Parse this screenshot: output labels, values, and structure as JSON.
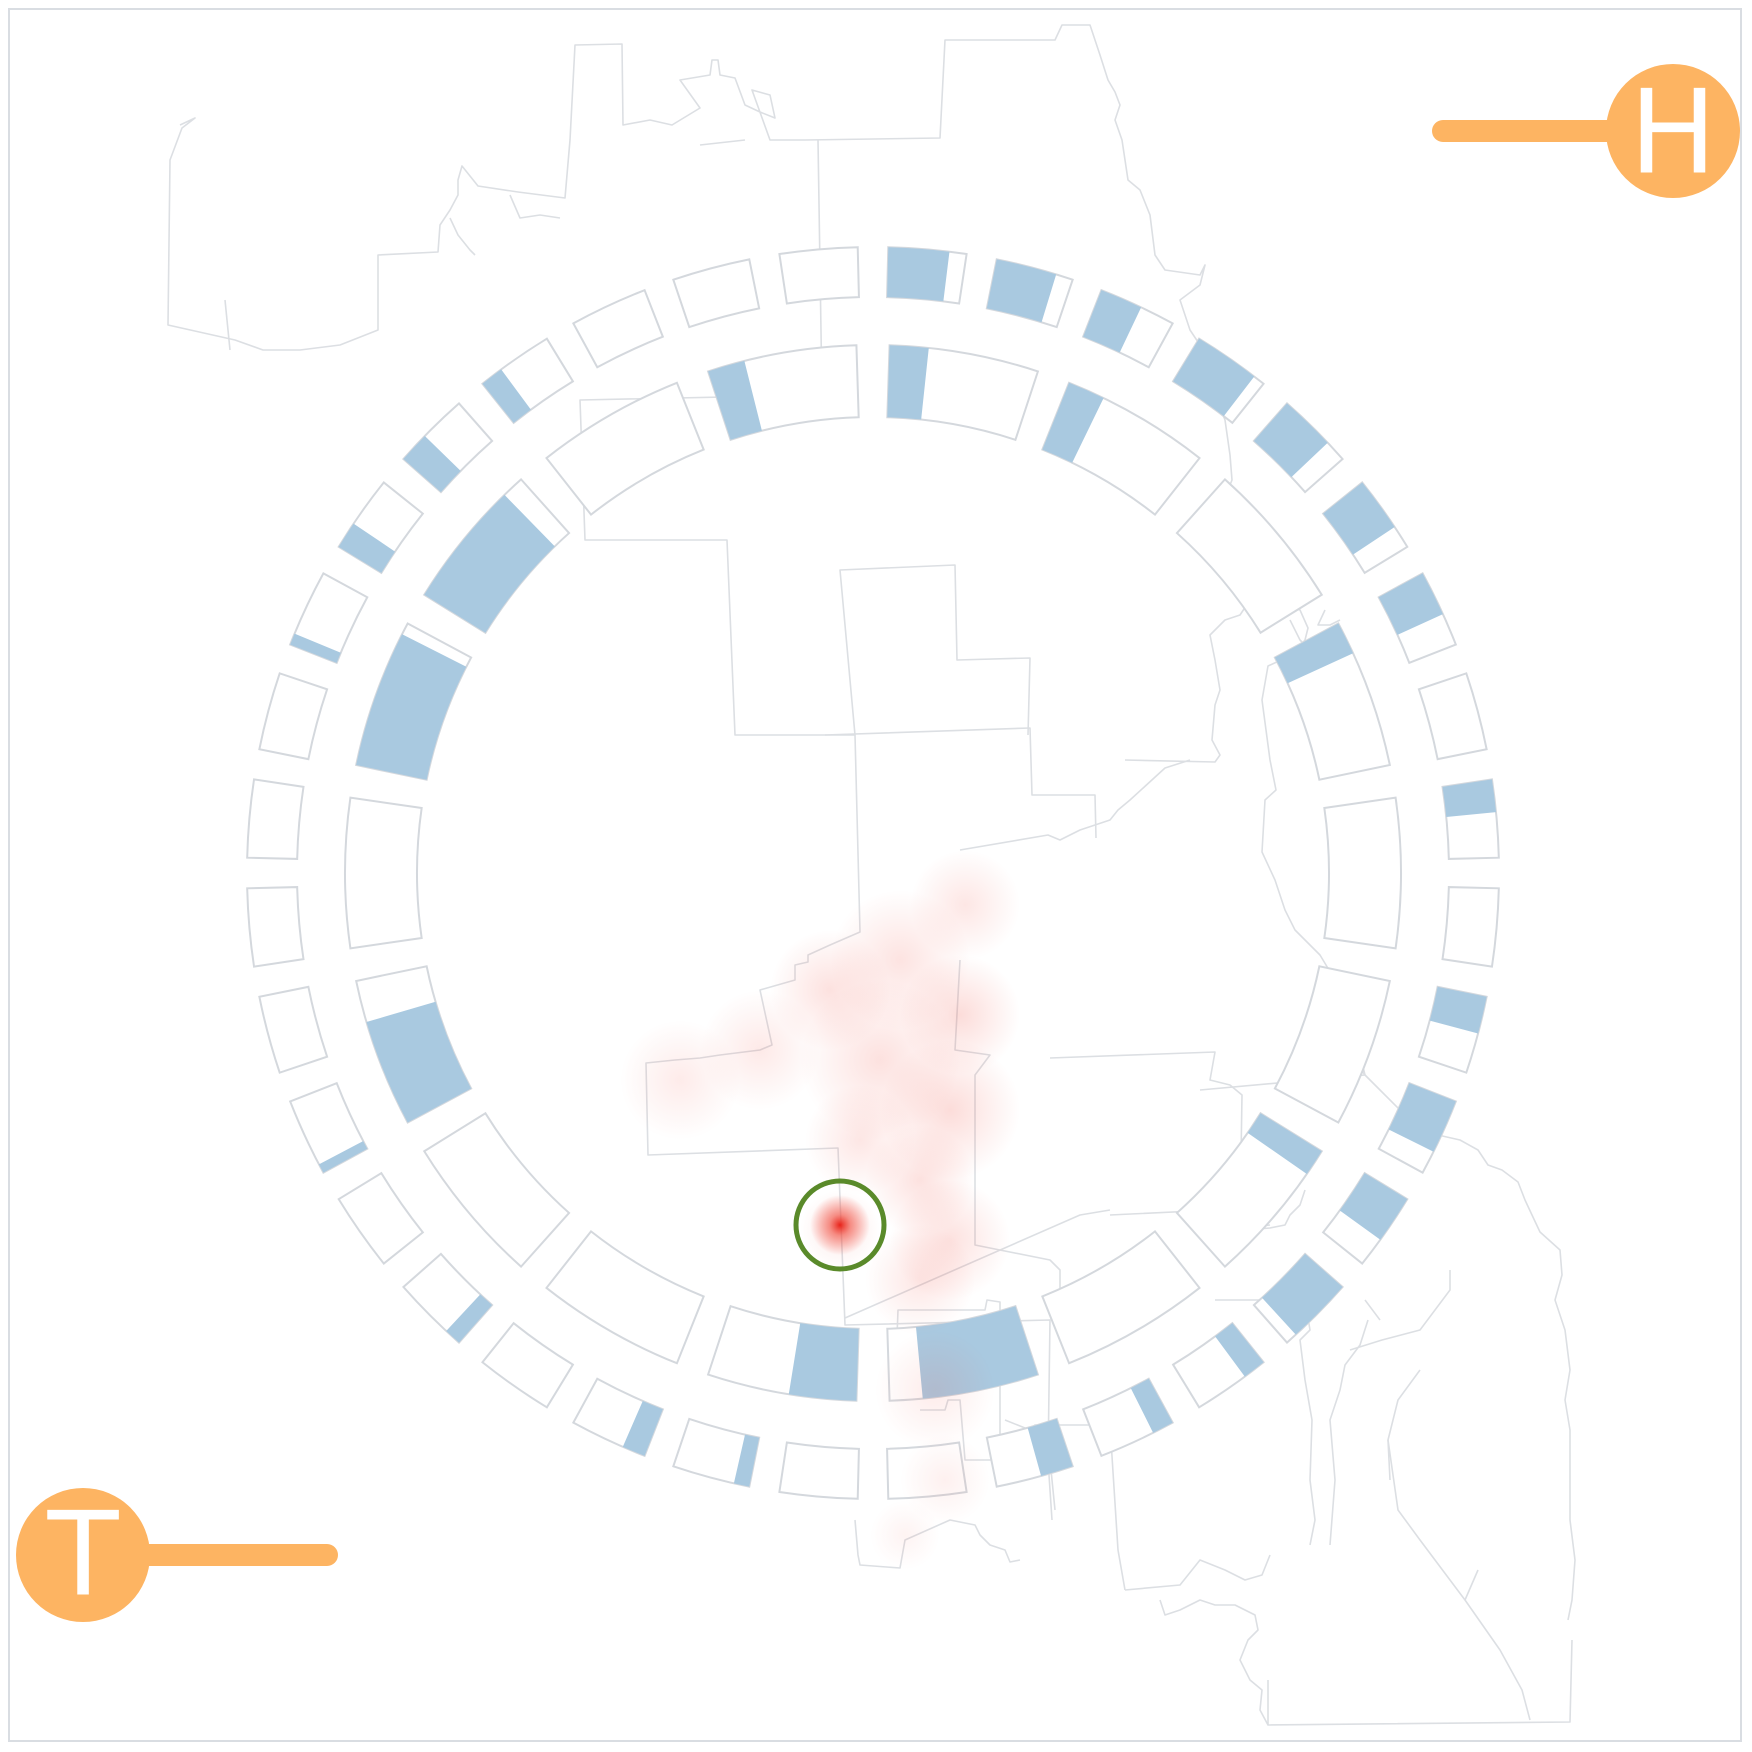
{
  "colors": {
    "background": "#ffffff",
    "frame": "#d9dde2",
    "boundary": "#dcdfe3",
    "ring_outline": "#d4d8dd",
    "ring_fill": "#a9c9e0",
    "badge": "#fdb462",
    "badge_text": "#ffffff",
    "heat": "#f04a3c",
    "target": "#5a8a2a"
  },
  "badges": {
    "top_right": {
      "letter": "H",
      "icon": "h-marker-icon"
    },
    "bottom_left": {
      "letter": "T",
      "icon": "t-marker-icon"
    }
  },
  "rings": {
    "inner": {
      "fills": [
        0.26,
        0.25,
        0.0,
        0.22,
        0.0,
        0.0,
        0.18,
        0.0,
        0.78,
        0.45,
        0.0,
        0.0,
        0.72,
        0.0,
        0.92,
        0.85,
        0.0,
        0.25
      ]
    },
    "outer": {
      "fills": [
        0.78,
        0.78,
        0.55,
        0.85,
        0.72,
        0.7,
        0.58,
        0.0,
        0.42,
        0.0,
        0.48,
        0.7,
        0.62,
        0.85,
        0.3,
        0.28,
        0.42,
        0.0,
        0.0,
        0.2,
        0.3,
        0.0,
        0.22,
        0.0,
        0.12,
        0.0,
        0.0,
        0.0,
        0.0,
        0.15,
        0.35,
        0.4,
        0.3,
        0.0,
        0.0,
        0.0
      ]
    }
  },
  "target": {
    "icon": "target-circle-icon"
  }
}
